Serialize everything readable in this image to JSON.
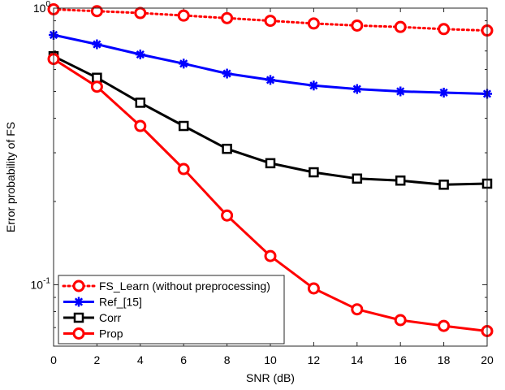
{
  "chart_data": {
    "type": "line",
    "yscale": "log",
    "xlabel": "SNR (dB)",
    "ylabel": "Error probability of FS",
    "xlim": [
      0,
      20
    ],
    "ylim": [
      0.06,
      1.0
    ],
    "x": [
      0,
      2,
      4,
      6,
      8,
      10,
      12,
      14,
      16,
      18,
      20
    ],
    "xticks": [
      "0",
      "2",
      "4",
      "6",
      "8",
      "10",
      "12",
      "14",
      "16",
      "18",
      "20"
    ],
    "yticks": [
      {
        "value": 1.0,
        "base": "10",
        "exp": "0"
      },
      {
        "value": 0.1,
        "base": "10",
        "exp": "-1"
      }
    ],
    "legend_position": "bottom-left",
    "series": [
      {
        "name": "FS_Learn (without preprocessing)",
        "color": "#ff0000",
        "marker": "circle",
        "linestyle": "dotted",
        "values": [
          0.99,
          0.975,
          0.96,
          0.94,
          0.92,
          0.9,
          0.88,
          0.865,
          0.855,
          0.84,
          0.83
        ]
      },
      {
        "name": "Ref_[15]",
        "color": "#0000ff",
        "marker": "asterisk",
        "linestyle": "solid",
        "values": [
          0.8,
          0.74,
          0.68,
          0.63,
          0.58,
          0.55,
          0.525,
          0.51,
          0.5,
          0.495,
          0.49
        ]
      },
      {
        "name": "Corr",
        "color": "#000000",
        "marker": "square",
        "linestyle": "solid",
        "values": [
          0.67,
          0.56,
          0.455,
          0.375,
          0.31,
          0.275,
          0.255,
          0.242,
          0.238,
          0.23,
          0.232
        ]
      },
      {
        "name": "Prop",
        "color": "#ff0000",
        "marker": "circle",
        "linestyle": "solid",
        "values": [
          0.655,
          0.52,
          0.375,
          0.262,
          0.178,
          0.127,
          0.097,
          0.0815,
          0.0745,
          0.071,
          0.068
        ]
      }
    ]
  }
}
